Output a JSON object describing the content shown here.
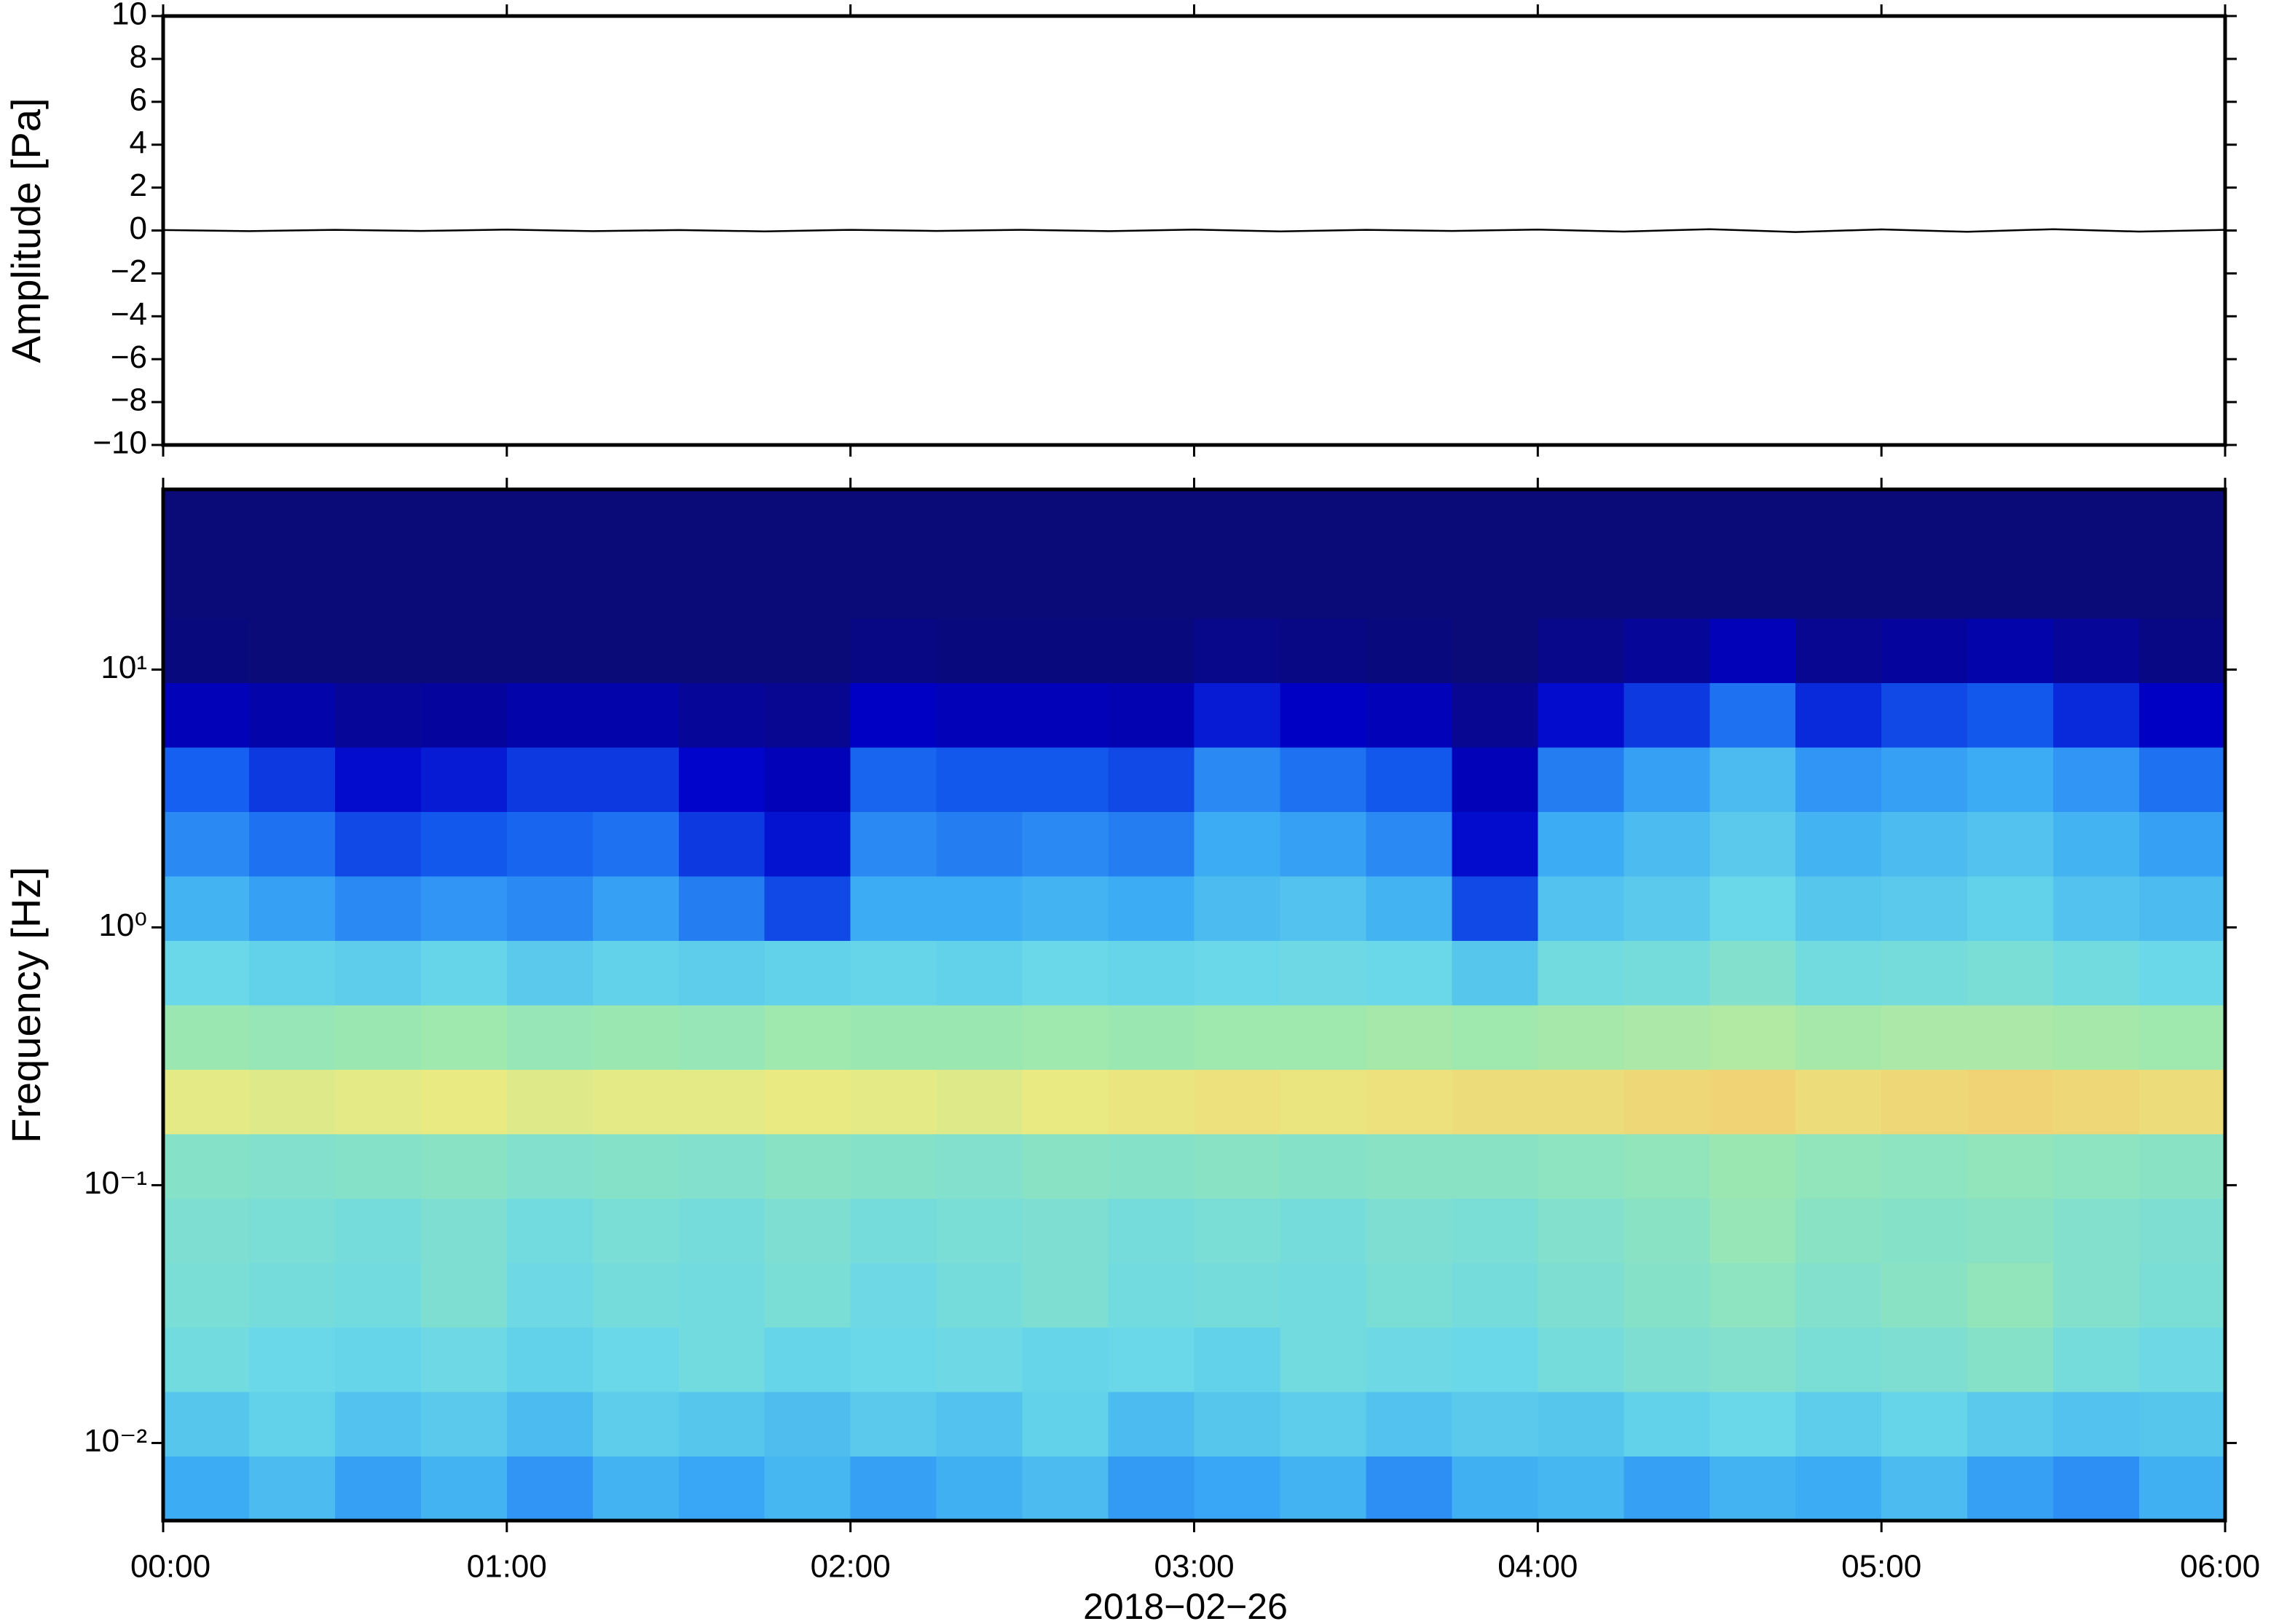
{
  "chart_data": [
    {
      "type": "line",
      "ylabel": "Amplitude [Pa]",
      "xlim": [
        0,
        6
      ],
      "xticks": [
        0,
        1,
        2,
        3,
        4,
        5,
        6
      ],
      "ylim": [
        -10,
        10
      ],
      "yticks": [
        {
          "value": -10,
          "label": "−10"
        },
        {
          "value": -8,
          "label": "−8"
        },
        {
          "value": -6,
          "label": "−6"
        },
        {
          "value": -4,
          "label": "−4"
        },
        {
          "value": -2,
          "label": "−2"
        },
        0,
        2,
        4,
        6,
        8,
        10
      ],
      "series": [
        {
          "color": "#000000",
          "x": [
            0,
            0.25,
            0.5,
            0.75,
            1,
            1.25,
            1.5,
            1.75,
            2,
            2.25,
            2.5,
            2.75,
            3,
            3.25,
            3.5,
            3.75,
            4,
            4.25,
            4.5,
            4.75,
            5,
            5.25,
            5.5,
            5.75,
            6
          ],
          "values": [
            0.02,
            -0.03,
            0.03,
            -0.02,
            0.04,
            -0.03,
            0.02,
            -0.04,
            0.03,
            -0.02,
            0.03,
            -0.03,
            0.04,
            -0.04,
            0.03,
            -0.02,
            0.04,
            -0.05,
            0.06,
            -0.07,
            0.05,
            -0.06,
            0.06,
            -0.05,
            0.03
          ]
        }
      ]
    },
    {
      "type": "heatmap",
      "ylabel": "Frequency [Hz]",
      "xlabel": "2018−02−26",
      "xlim": [
        0,
        6
      ],
      "xticks": [
        {
          "value": 0,
          "label": "00:00"
        },
        {
          "value": 1,
          "label": "01:00"
        },
        {
          "value": 2,
          "label": "02:00"
        },
        {
          "value": 3,
          "label": "03:00"
        },
        {
          "value": 4,
          "label": "04:00"
        },
        {
          "value": 5,
          "label": "05:00"
        },
        {
          "value": 6,
          "label": "06:00"
        }
      ],
      "ylim": [
        0.005,
        50
      ],
      "log_y": true,
      "yticks": [
        {
          "value": 0.01,
          "label": "10⁻²"
        },
        {
          "value": 0.1,
          "label": "10⁻¹"
        },
        {
          "value": 1,
          "label": "10⁰"
        },
        {
          "value": 10,
          "label": "10¹"
        }
      ],
      "colorscale": [
        "#0a0a78",
        "#0000c8",
        "#1560f0",
        "#3aaaf5",
        "#6ad8e8",
        "#9ce8b0",
        "#eaea82",
        "#f8b060",
        "#e05030"
      ],
      "zlim": [
        0,
        1
      ],
      "xbins": [
        0,
        0.25,
        0.5,
        0.75,
        1,
        1.25,
        1.5,
        1.75,
        2,
        2.25,
        2.5,
        2.75,
        3,
        3.25,
        3.5,
        3.75,
        4,
        4.25,
        4.5,
        4.75,
        5,
        5.25,
        5.5,
        5.75,
        6
      ],
      "ybins": [
        0.005,
        0.0089,
        0.0158,
        0.0281,
        0.05,
        0.089,
        0.158,
        0.281,
        0.5,
        0.89,
        1.58,
        2.81,
        5,
        8.9,
        15.8,
        28.1,
        50
      ],
      "z": [
        [
          0.38,
          0.42,
          0.36,
          0.4,
          0.34,
          0.4,
          0.37,
          0.41,
          0.36,
          0.39,
          0.42,
          0.35,
          0.37,
          0.4,
          0.33,
          0.39,
          0.41,
          0.36,
          0.4,
          0.38,
          0.42,
          0.36,
          0.33,
          0.39
        ],
        [
          0.45,
          0.48,
          0.44,
          0.46,
          0.42,
          0.47,
          0.45,
          0.43,
          0.46,
          0.44,
          0.48,
          0.42,
          0.45,
          0.47,
          0.44,
          0.46,
          0.45,
          0.48,
          0.5,
          0.47,
          0.49,
          0.46,
          0.44,
          0.45
        ],
        [
          0.52,
          0.5,
          0.49,
          0.51,
          0.48,
          0.5,
          0.52,
          0.49,
          0.5,
          0.51,
          0.49,
          0.5,
          0.48,
          0.52,
          0.51,
          0.5,
          0.53,
          0.55,
          0.56,
          0.54,
          0.55,
          0.57,
          0.53,
          0.51
        ],
        [
          0.54,
          0.53,
          0.52,
          0.55,
          0.51,
          0.53,
          0.52,
          0.54,
          0.51,
          0.53,
          0.55,
          0.52,
          0.53,
          0.52,
          0.54,
          0.53,
          0.55,
          0.57,
          0.59,
          0.56,
          0.58,
          0.6,
          0.56,
          0.54
        ],
        [
          0.55,
          0.54,
          0.53,
          0.55,
          0.52,
          0.54,
          0.53,
          0.55,
          0.53,
          0.54,
          0.55,
          0.53,
          0.54,
          0.53,
          0.55,
          0.54,
          0.56,
          0.58,
          0.61,
          0.58,
          0.57,
          0.58,
          0.56,
          0.55
        ],
        [
          0.57,
          0.56,
          0.57,
          0.58,
          0.56,
          0.57,
          0.56,
          0.58,
          0.57,
          0.56,
          0.58,
          0.57,
          0.58,
          0.57,
          0.58,
          0.58,
          0.59,
          0.6,
          0.62,
          0.6,
          0.59,
          0.6,
          0.59,
          0.58
        ],
        [
          0.74,
          0.73,
          0.74,
          0.75,
          0.73,
          0.74,
          0.74,
          0.75,
          0.74,
          0.73,
          0.75,
          0.76,
          0.77,
          0.76,
          0.77,
          0.78,
          0.78,
          0.79,
          0.8,
          0.78,
          0.79,
          0.8,
          0.79,
          0.78
        ],
        [
          0.62,
          0.61,
          0.62,
          0.63,
          0.61,
          0.62,
          0.61,
          0.63,
          0.62,
          0.62,
          0.63,
          0.62,
          0.63,
          0.63,
          0.64,
          0.63,
          0.64,
          0.65,
          0.66,
          0.64,
          0.65,
          0.65,
          0.64,
          0.63
        ],
        [
          0.5,
          0.48,
          0.47,
          0.49,
          0.46,
          0.48,
          0.47,
          0.48,
          0.49,
          0.48,
          0.5,
          0.49,
          0.5,
          0.51,
          0.5,
          0.45,
          0.52,
          0.53,
          0.56,
          0.52,
          0.53,
          0.54,
          0.52,
          0.5
        ],
        [
          0.4,
          0.36,
          0.32,
          0.34,
          0.32,
          0.36,
          0.3,
          0.22,
          0.38,
          0.38,
          0.4,
          0.38,
          0.42,
          0.44,
          0.4,
          0.22,
          0.44,
          0.46,
          0.5,
          0.45,
          0.46,
          0.48,
          0.44,
          0.42
        ],
        [
          0.32,
          0.28,
          0.22,
          0.24,
          0.26,
          0.28,
          0.2,
          0.15,
          0.32,
          0.3,
          0.32,
          0.3,
          0.38,
          0.36,
          0.32,
          0.14,
          0.38,
          0.42,
          0.46,
          0.4,
          0.42,
          0.44,
          0.4,
          0.36
        ],
        [
          0.25,
          0.2,
          0.14,
          0.16,
          0.2,
          0.2,
          0.13,
          0.1,
          0.26,
          0.24,
          0.24,
          0.22,
          0.32,
          0.28,
          0.24,
          0.1,
          0.3,
          0.36,
          0.42,
          0.34,
          0.36,
          0.38,
          0.34,
          0.28
        ],
        [
          0.1,
          0.08,
          0.05,
          0.06,
          0.08,
          0.08,
          0.05,
          0.04,
          0.12,
          0.1,
          0.1,
          0.09,
          0.16,
          0.12,
          0.1,
          0.04,
          0.14,
          0.2,
          0.28,
          0.18,
          0.22,
          0.24,
          0.18,
          0.12
        ],
        [
          0.01,
          0,
          0,
          0,
          0,
          0,
          0,
          0,
          0.02,
          0.01,
          0.01,
          0.01,
          0.03,
          0.02,
          0.01,
          0,
          0.03,
          0.05,
          0.1,
          0.04,
          0.06,
          0.08,
          0.05,
          0.02
        ],
        [
          0,
          0,
          0,
          0,
          0,
          0,
          0,
          0,
          0,
          0,
          0,
          0,
          0,
          0,
          0,
          0,
          0,
          0,
          0,
          0,
          0,
          0,
          0,
          0
        ],
        [
          0,
          0,
          0,
          0,
          0,
          0,
          0,
          0,
          0,
          0,
          0,
          0,
          0,
          0,
          0,
          0,
          0,
          0,
          0,
          0,
          0,
          0,
          0,
          0
        ]
      ]
    }
  ]
}
